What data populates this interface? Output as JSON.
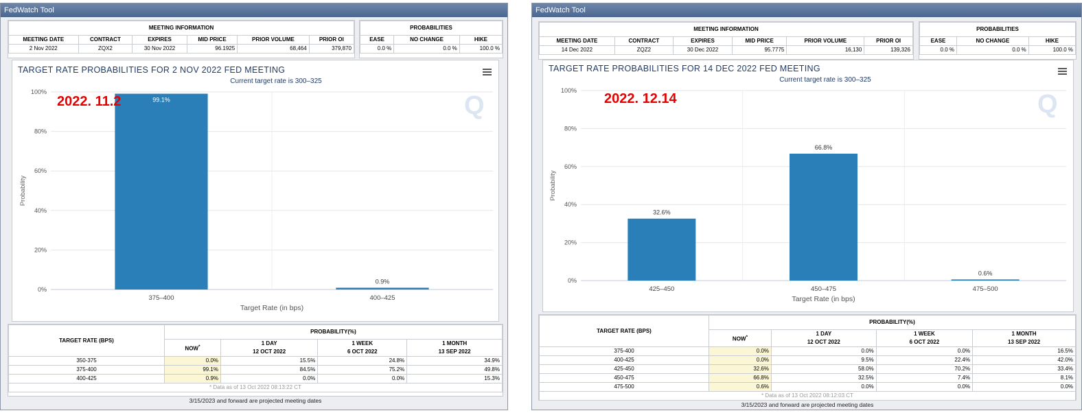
{
  "panels": [
    {
      "window_title": "FedWatch Tool",
      "info": {
        "title": "MEETING INFORMATION",
        "headers": [
          "MEETING DATE",
          "CONTRACT",
          "EXPIRES",
          "MID PRICE",
          "PRIOR VOLUME",
          "PRIOR OI"
        ],
        "values": [
          "2 Nov 2022",
          "ZQX2",
          "30 Nov 2022",
          "96.1925",
          "68,464",
          "379,870"
        ]
      },
      "prob": {
        "title": "PROBABILITIES",
        "headers": [
          "EASE",
          "NO CHANGE",
          "HIKE"
        ],
        "values": [
          "0.0 %",
          "0.0 %",
          "100.0 %"
        ]
      },
      "chart_data": {
        "type": "bar",
        "title": "TARGET RATE PROBABILITIES FOR 2 NOV 2022 FED MEETING",
        "subtitle": "Current target rate is 300–325",
        "categories": [
          "375–400",
          "400–425"
        ],
        "values": [
          99.1,
          0.9
        ],
        "data_labels": [
          "99.1%",
          "0.9%"
        ],
        "xlabel": "Target Rate (in bps)",
        "ylabel": "Probability",
        "ylim": [
          0,
          100
        ],
        "yticks": [
          "0%",
          "20%",
          "40%",
          "60%",
          "80%",
          "100%"
        ],
        "bar_color": "#2b7fb9",
        "annotation": "2022. 11.2"
      },
      "bottom": {
        "col1": "TARGET RATE (BPS)",
        "group": "PROBABILITY(%)",
        "cols": [
          {
            "l1": "NOW",
            "l2": ""
          },
          {
            "l1": "1 DAY",
            "l2": "12 OCT 2022"
          },
          {
            "l1": "1 WEEK",
            "l2": "6 OCT 2022"
          },
          {
            "l1": "1 MONTH",
            "l2": "13 SEP 2022"
          }
        ],
        "now_mark": "*",
        "rows": [
          [
            "350-375",
            "0.0%",
            "15.5%",
            "24.8%",
            "34.9%"
          ],
          [
            "375-400",
            "99.1%",
            "84.5%",
            "75.2%",
            "49.8%"
          ],
          [
            "400-425",
            "0.9%",
            "0.0%",
            "0.0%",
            "15.3%"
          ]
        ],
        "note": "* Data as of 13 Oct 2022 08:13:22 CT",
        "footer": "3/15/2023 and forward are projected meeting dates"
      }
    },
    {
      "window_title": "FedWatch Tool",
      "info": {
        "title": "MEETING INFORMATION",
        "headers": [
          "MEETING DATE",
          "CONTRACT",
          "EXPIRES",
          "MID PRICE",
          "PRIOR VOLUME",
          "PRIOR OI"
        ],
        "values": [
          "14 Dec 2022",
          "ZQZ2",
          "30 Dec 2022",
          "95.7775",
          "16,130",
          "139,326"
        ]
      },
      "prob": {
        "title": "PROBABILITIES",
        "headers": [
          "EASE",
          "NO CHANGE",
          "HIKE"
        ],
        "values": [
          "0.0 %",
          "0.0 %",
          "100.0 %"
        ]
      },
      "chart_data": {
        "type": "bar",
        "title": "TARGET RATE PROBABILITIES FOR 14 DEC 2022 FED MEETING",
        "subtitle": "Current target rate is 300–325",
        "categories": [
          "425–450",
          "450–475",
          "475–500"
        ],
        "values": [
          32.6,
          66.8,
          0.6
        ],
        "data_labels": [
          "32.6%",
          "66.8%",
          "0.6%"
        ],
        "xlabel": "Target Rate (in bps)",
        "ylabel": "Probability",
        "ylim": [
          0,
          100
        ],
        "yticks": [
          "0%",
          "20%",
          "40%",
          "60%",
          "80%",
          "100%"
        ],
        "bar_color": "#2b7fb9",
        "annotation": "2022. 12.14"
      },
      "bottom": {
        "col1": "TARGET RATE (BPS)",
        "group": "PROBABILITY(%)",
        "cols": [
          {
            "l1": "NOW",
            "l2": ""
          },
          {
            "l1": "1 DAY",
            "l2": "12 OCT 2022"
          },
          {
            "l1": "1 WEEK",
            "l2": "6 OCT 2022"
          },
          {
            "l1": "1 MONTH",
            "l2": "13 SEP 2022"
          }
        ],
        "now_mark": "*",
        "rows": [
          [
            "375-400",
            "0.0%",
            "0.0%",
            "0.0%",
            "16.5%"
          ],
          [
            "400-425",
            "0.0%",
            "9.5%",
            "22.4%",
            "42.0%"
          ],
          [
            "425-450",
            "32.6%",
            "58.0%",
            "70.2%",
            "33.4%"
          ],
          [
            "450-475",
            "66.8%",
            "32.5%",
            "7.4%",
            "8.1%"
          ],
          [
            "475-500",
            "0.6%",
            "0.0%",
            "0.0%",
            "0.0%"
          ]
        ],
        "note": "* Data as of 13 Oct 2022 08:12:03 CT",
        "footer": "3/15/2023 and forward are projected meeting dates"
      }
    }
  ]
}
